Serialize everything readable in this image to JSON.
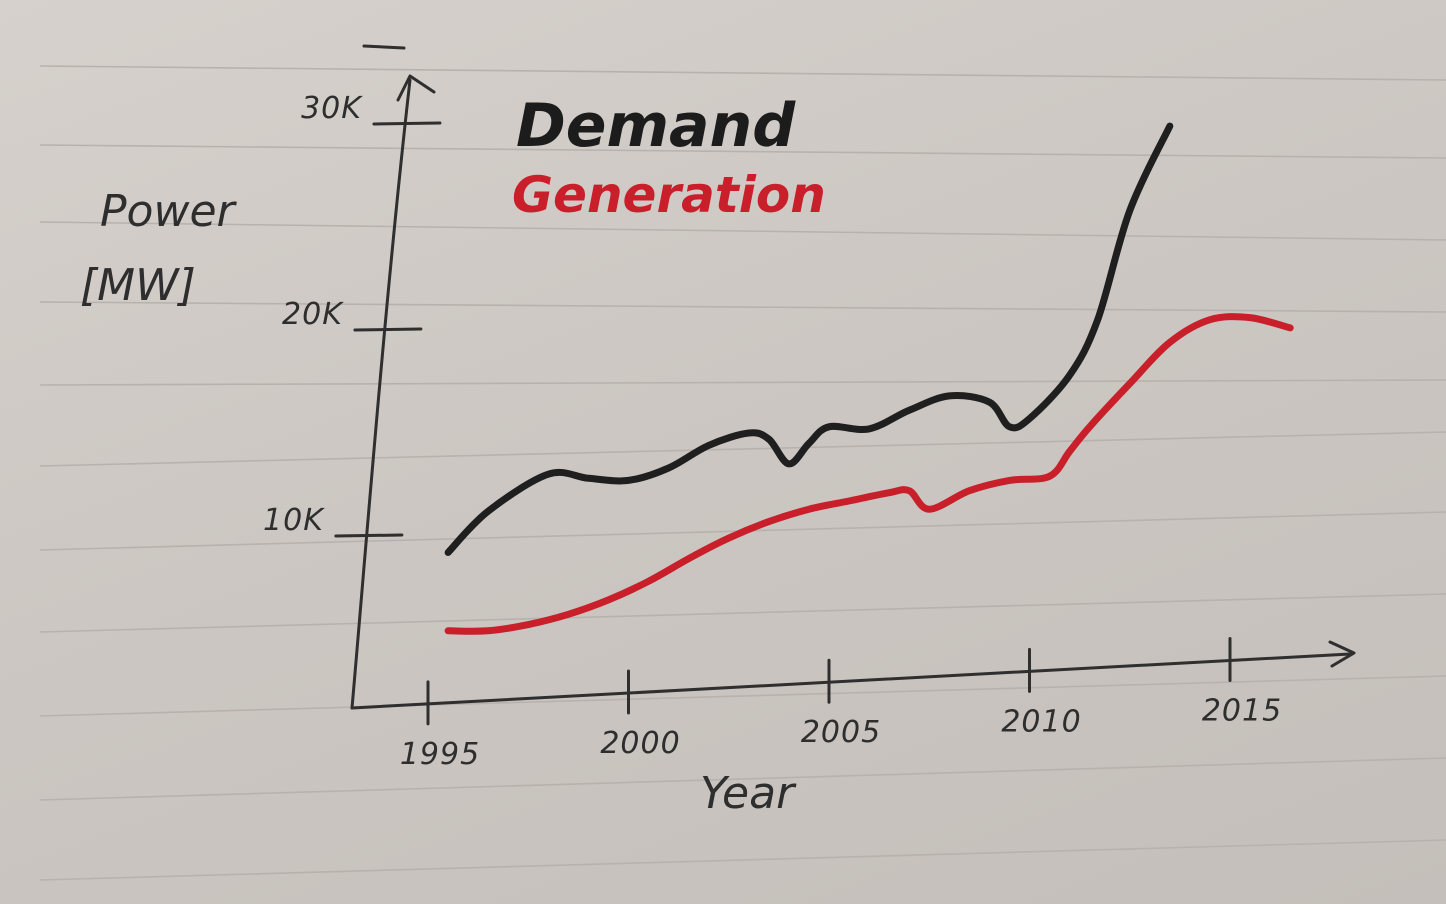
{
  "chart_data": {
    "type": "line",
    "title": "",
    "xlabel": "Year",
    "ylabel_line1": "Power",
    "ylabel_line2": "[MW]",
    "x_ticks": [
      {
        "value": 1995,
        "label": "1995"
      },
      {
        "value": 2000,
        "label": "2000"
      },
      {
        "value": 2005,
        "label": "2005"
      },
      {
        "value": 2010,
        "label": "2010"
      },
      {
        "value": 2015,
        "label": "2015"
      }
    ],
    "y_ticks": [
      {
        "value": 10000,
        "label": "10K"
      },
      {
        "value": 20000,
        "label": "20K"
      },
      {
        "value": 30000,
        "label": "30K"
      }
    ],
    "xlim": [
      1992.5,
      2018.5
    ],
    "ylim": [
      3000,
      34000
    ],
    "grid": false,
    "legend_position": "top-center",
    "series": [
      {
        "name": "Demand",
        "color": "#1f1f1f",
        "x": [
          1995.5,
          1996.5,
          1998,
          1999,
          2000,
          2001,
          2002,
          2003,
          2003.5,
          2004,
          2004.5,
          2005,
          2006,
          2007,
          2008,
          2009,
          2009.5,
          2010,
          2011,
          2011.7,
          2012.5,
          2013.5
        ],
        "y": [
          9200,
          11200,
          13000,
          12800,
          12700,
          13300,
          14400,
          15000,
          14700,
          13500,
          14500,
          15300,
          15200,
          16100,
          16800,
          16500,
          15300,
          15700,
          17800,
          20500,
          25800,
          29900
        ]
      },
      {
        "name": "Generation",
        "color": "#c81f2b",
        "x": [
          1995.5,
          1996.5,
          1997.5,
          1998.5,
          1999.5,
          2000.5,
          2001.5,
          2002.5,
          2003.5,
          2004.5,
          2005.5,
          2006.5,
          2007,
          2007.5,
          2008.5,
          2009.5,
          2010.5,
          2011,
          2011.5,
          2012.5,
          2013.5,
          2014.5,
          2015.5,
          2016.5
        ],
        "y": [
          5400,
          5400,
          5700,
          6200,
          6900,
          7800,
          8900,
          9900,
          10700,
          11300,
          11700,
          12100,
          12200,
          11300,
          12200,
          12700,
          12900,
          14100,
          15300,
          17400,
          19400,
          20500,
          20600,
          20100
        ]
      }
    ]
  }
}
